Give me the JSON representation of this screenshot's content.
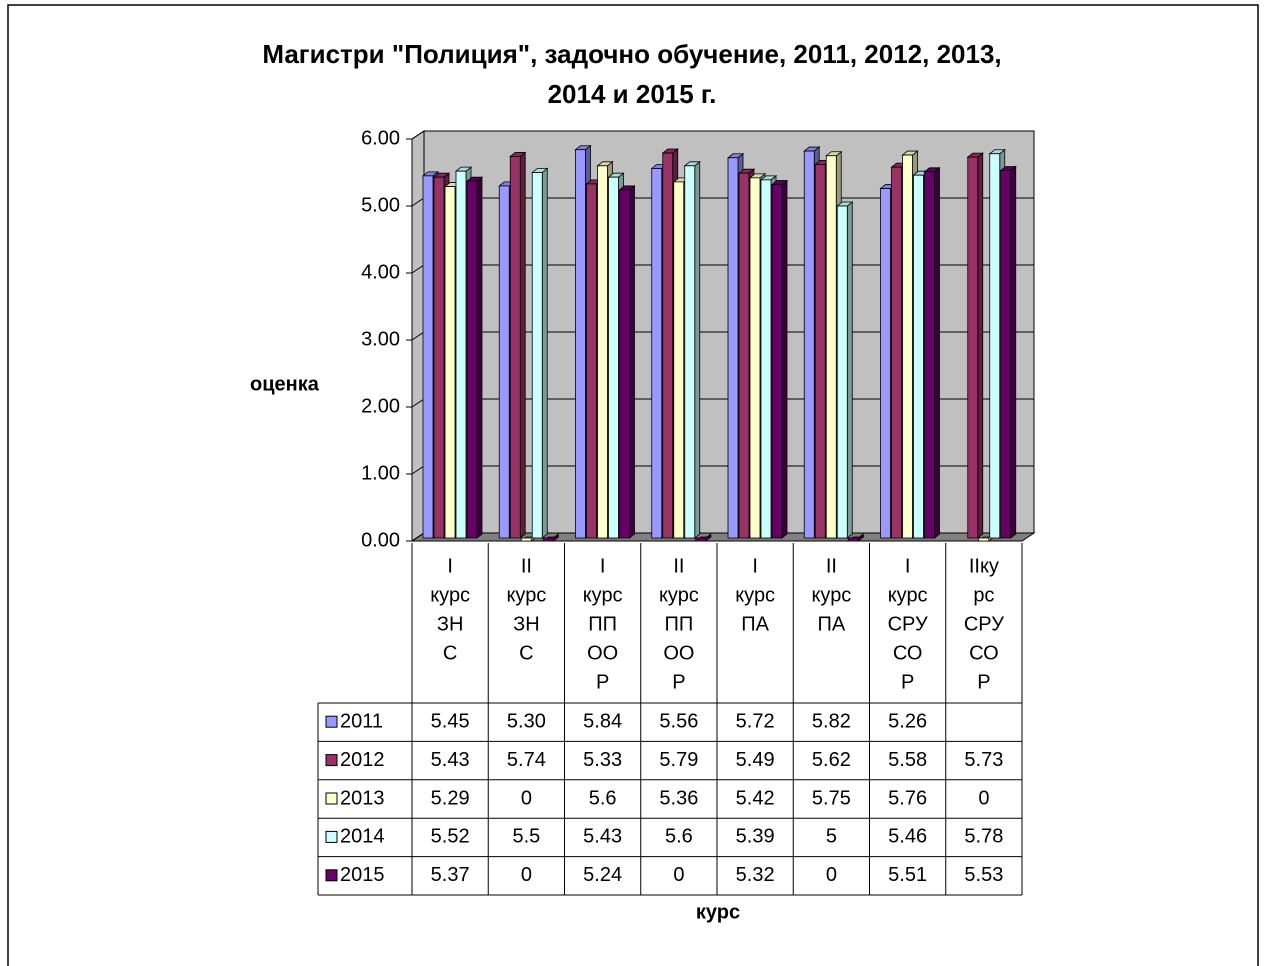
{
  "chart_data": {
    "type": "bar3d",
    "title": [
      "Магистри  \"Полиция\", задочно обучение, 2011, 2012, 2013,",
      "2014 и 2015 г."
    ],
    "y_label": "оценка",
    "x_label": "курс",
    "categories": [
      [
        "I",
        "курс",
        "ЗН",
        "С"
      ],
      [
        "II",
        "курс",
        "ЗН",
        "С"
      ],
      [
        "I",
        "курс",
        "ПП",
        "ОО",
        "Р"
      ],
      [
        "II",
        "курс",
        "ПП",
        "ОО",
        "Р"
      ],
      [
        "I",
        "курс",
        "ПА"
      ],
      [
        "II",
        "курс",
        "ПА"
      ],
      [
        "I",
        "курс",
        "СРУ",
        "СО",
        "Р"
      ],
      [
        "IIку",
        "рс",
        "СРУ",
        "СО",
        "Р"
      ]
    ],
    "series": [
      {
        "name": "2011",
        "color": "#9999ff",
        "values": [
          5.45,
          5.3,
          5.84,
          5.56,
          5.72,
          5.82,
          5.26,
          null
        ],
        "value_labels": [
          "5.45",
          "5.30",
          "5.84",
          "5.56",
          "5.72",
          "5.82",
          "5.26",
          null
        ]
      },
      {
        "name": "2012",
        "color": "#993366",
        "values": [
          5.43,
          5.74,
          5.33,
          5.79,
          5.49,
          5.62,
          5.58,
          5.73
        ],
        "value_labels": [
          "5.43",
          "5.74",
          "5.33",
          "5.79",
          "5.49",
          "5.62",
          "5.58",
          "5.73"
        ]
      },
      {
        "name": "2013",
        "color": "#ffffcc",
        "values": [
          5.29,
          0,
          5.6,
          5.36,
          5.42,
          5.75,
          5.76,
          0
        ],
        "value_labels": [
          "5.29",
          "0",
          "5.6",
          "5.36",
          "5.42",
          "5.75",
          "5.76",
          "0"
        ]
      },
      {
        "name": "2014",
        "color": "#ccffff",
        "values": [
          5.52,
          5.5,
          5.43,
          5.6,
          5.39,
          5,
          5.46,
          5.78
        ],
        "value_labels": [
          "5.52",
          "5.5",
          "5.43",
          "5.6",
          "5.39",
          "5",
          "5.46",
          "5.78"
        ]
      },
      {
        "name": "2015",
        "color": "#660066",
        "values": [
          5.37,
          0,
          5.24,
          0,
          5.32,
          0,
          5.51,
          5.53
        ],
        "value_labels": [
          "5.37",
          "0",
          "5.24",
          "0",
          "5.32",
          "0",
          "5.51",
          "5.53"
        ]
      }
    ],
    "ylim": [
      0,
      6
    ],
    "yticks": [
      {
        "value": 0,
        "label": "0.00"
      },
      {
        "value": 1,
        "label": "1.00"
      },
      {
        "value": 2,
        "label": "2.00"
      },
      {
        "value": 3,
        "label": "3.00"
      },
      {
        "value": 4,
        "label": "4.00"
      },
      {
        "value": 5,
        "label": "5.00"
      },
      {
        "value": 6,
        "label": "6.00"
      }
    ],
    "grid": true,
    "wall_color": "#c0c0c0"
  }
}
